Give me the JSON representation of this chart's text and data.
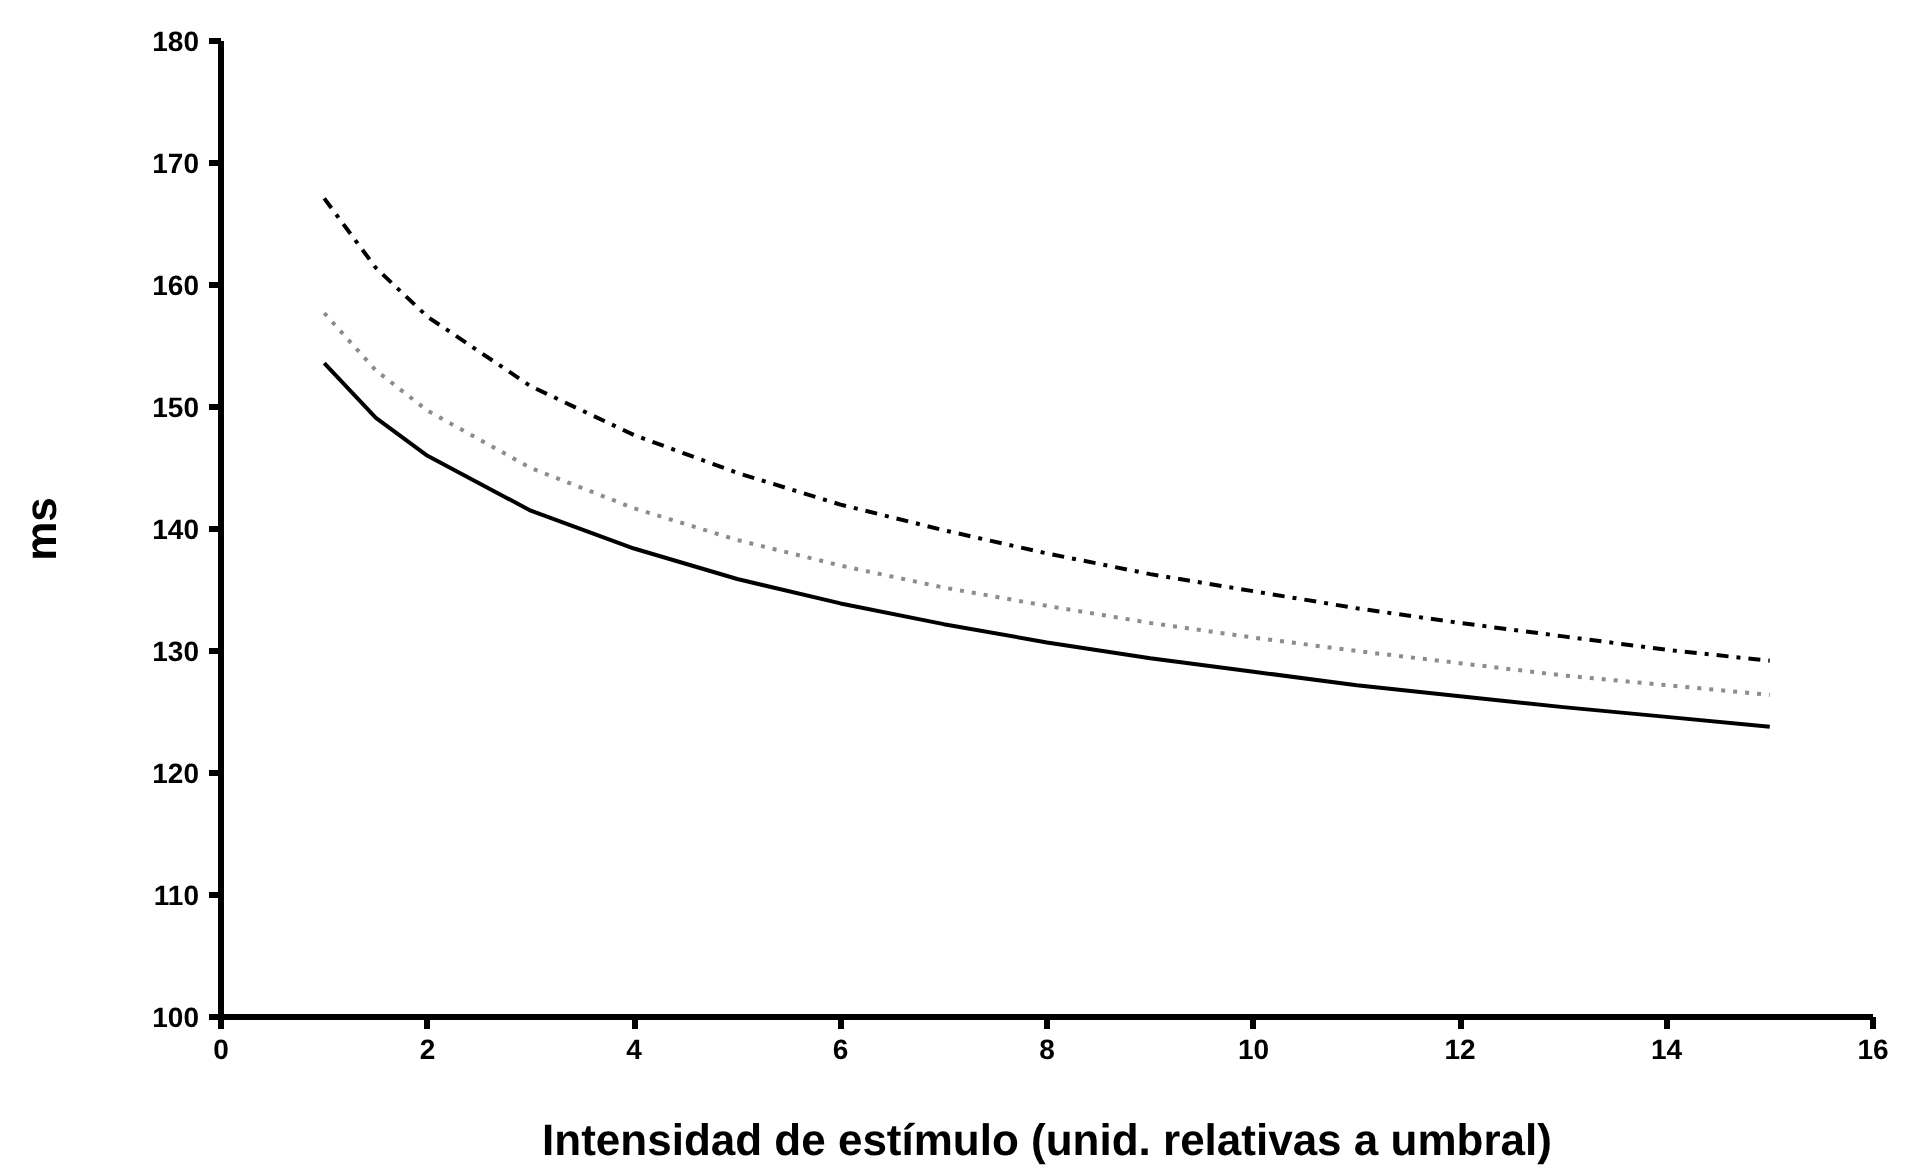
{
  "chart_data": {
    "type": "line",
    "xlabel": "Intensidad de estímulo (unid. relativas a umbral)",
    "ylabel": "ms",
    "x": [
      1,
      1.5,
      2,
      3,
      4,
      5,
      6,
      7,
      8,
      9,
      10,
      11,
      12,
      13,
      14,
      15
    ],
    "xlim": [
      0,
      16
    ],
    "xticks": [
      0,
      2,
      4,
      6,
      8,
      10,
      12,
      14,
      16
    ],
    "ylim": [
      100,
      180
    ],
    "yticks": [
      100,
      110,
      120,
      130,
      140,
      150,
      160,
      170,
      180
    ],
    "grid": false,
    "marker": "none",
    "series": [
      {
        "color": "#000000",
        "line_style": "solid",
        "values": [
          153.6,
          149.1,
          146.0,
          141.5,
          138.4,
          135.9,
          133.9,
          132.2,
          130.7,
          129.4,
          128.3,
          127.2,
          126.3,
          125.4,
          124.6,
          123.8
        ]
      },
      {
        "color": "#8c8c8c",
        "line_style": "dotted",
        "values": [
          157.7,
          153.0,
          149.7,
          145.0,
          141.7,
          139.1,
          137.0,
          135.2,
          133.7,
          132.3,
          131.1,
          130.0,
          129.0,
          128.0,
          127.2,
          126.4
        ]
      },
      {
        "color": "#000000",
        "line_style": "dashdot",
        "values": [
          167.1,
          161.4,
          157.4,
          151.7,
          147.7,
          144.6,
          142.0,
          139.9,
          138.0,
          136.3,
          134.9,
          133.5,
          132.3,
          131.2,
          130.1,
          129.2
        ]
      }
    ]
  }
}
